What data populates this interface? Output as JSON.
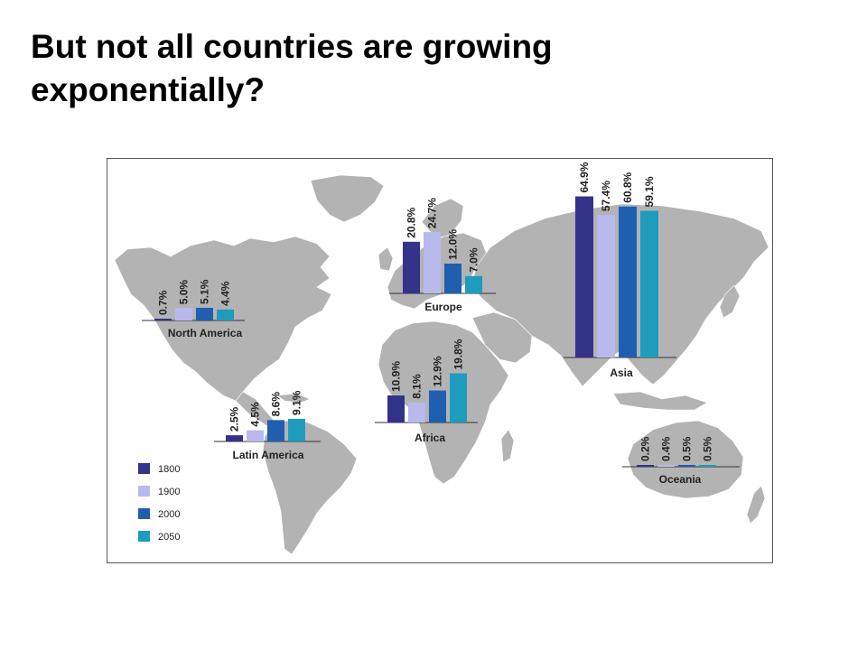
{
  "title": {
    "line1": "But not all countries are growing",
    "line2": "exponentially?"
  },
  "chart_data": {
    "type": "bar",
    "value_unit": "%",
    "series": [
      {
        "name": "1800",
        "color": "#33338a"
      },
      {
        "name": "1900",
        "color": "#b9b9ee"
      },
      {
        "name": "2000",
        "color": "#1f5fb0"
      },
      {
        "name": "2050",
        "color": "#1d9cbe"
      }
    ],
    "regions": [
      {
        "name": "North America",
        "values": [
          0.7,
          5.0,
          5.1,
          4.4
        ],
        "labels": [
          "0.7%",
          "5.0%",
          "5.1%",
          "4.4%"
        ]
      },
      {
        "name": "Europe",
        "values": [
          20.8,
          24.7,
          12.0,
          7.0
        ],
        "labels": [
          "20.8%",
          "24.7%",
          "12.0%",
          "7.0%"
        ]
      },
      {
        "name": "Asia",
        "values": [
          64.9,
          57.4,
          60.8,
          59.1
        ],
        "labels": [
          "64.9%",
          "57.4%",
          "60.8%",
          "59.1%"
        ]
      },
      {
        "name": "Africa",
        "values": [
          10.9,
          8.1,
          12.9,
          19.8
        ],
        "labels": [
          "10.9%",
          "8.1%",
          "12.9%",
          "19.8%"
        ]
      },
      {
        "name": "Latin America",
        "values": [
          2.5,
          4.5,
          8.6,
          9.1
        ],
        "labels": [
          "2.5%",
          "4.5%",
          "8.6%",
          "9.1%"
        ]
      },
      {
        "name": "Oceania",
        "values": [
          0.2,
          0.4,
          0.5,
          0.5
        ],
        "labels": [
          "0.2%",
          "0.4%",
          "0.5%",
          "0.5%"
        ]
      }
    ],
    "legend_placement": "bottom-left",
    "background": "world-map",
    "map_color": "#b3b3b3"
  }
}
